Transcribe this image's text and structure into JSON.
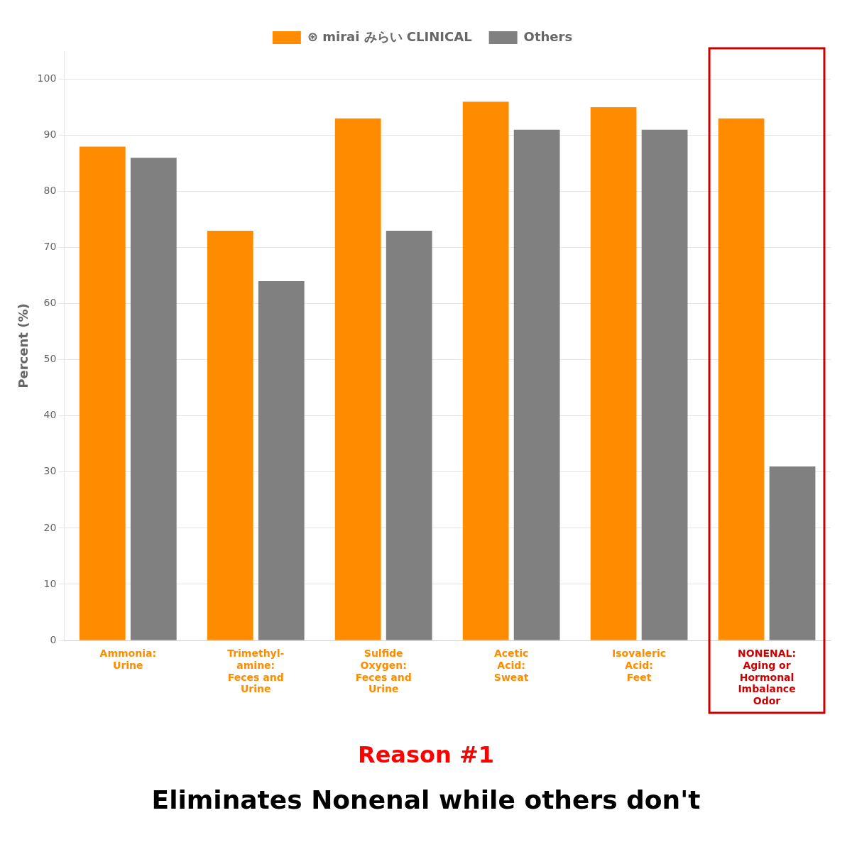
{
  "chart_data": {
    "type": "bar",
    "categories": [
      "Ammonia:\nUrine",
      "Trimethyl-\namine:\nFeces and\nUrine",
      "Sulfide\nOxygen:\nFeces and\nUrine",
      "Acetic\nAcid:\nSweat",
      "Isovaleric\nAcid:\nFeet",
      "NONENAL:\nAging or\nHormonal\nImbalance\nOdor"
    ],
    "series": [
      {
        "name": "⊛ mirai みらい CLINICAL",
        "color": "#FF8C00",
        "values": [
          88,
          73,
          93,
          96,
          95,
          93
        ]
      },
      {
        "name": "Others",
        "color": "#808080",
        "values": [
          86,
          64,
          73,
          91,
          91,
          31
        ]
      }
    ],
    "ylabel": "Percent (%)",
    "ylim": [
      0,
      105
    ],
    "yticks": [
      0,
      10,
      20,
      30,
      40,
      50,
      60,
      70,
      80,
      90,
      100
    ],
    "grid": true,
    "legend": "top",
    "annotations": [
      {
        "text": "Reason #1",
        "color": "#FF0000"
      },
      {
        "text": "Eliminates Nonenal while others don't",
        "color": "#000000"
      }
    ]
  }
}
